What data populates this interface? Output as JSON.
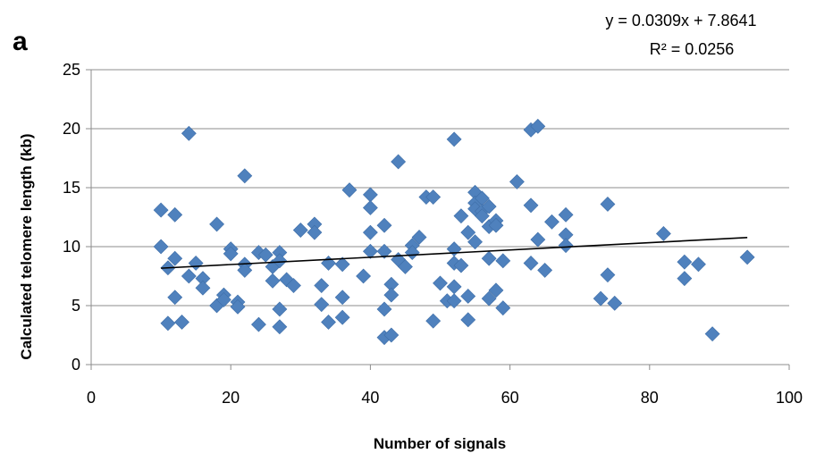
{
  "chart_data": {
    "type": "scatter",
    "panel_label": "a",
    "xlabel": "Number of signals",
    "ylabel": "Calculated telomere length (kb)",
    "xlim": [
      0,
      100
    ],
    "ylim": [
      0,
      25
    ],
    "x_ticks": [
      0,
      20,
      40,
      60,
      80,
      100
    ],
    "y_ticks": [
      0,
      5,
      10,
      15,
      20,
      25
    ],
    "grid": "horizontal",
    "marker": "diamond",
    "marker_color": "#4F81BD",
    "trendline": {
      "slope": 0.0309,
      "intercept": 7.8641,
      "x_range": [
        10,
        94
      ],
      "color": "#000000",
      "equation": "y = 0.0309x + 7.8641",
      "r_squared": "R² = 0.0256"
    },
    "points": [
      {
        "x": 10,
        "y": 13.1
      },
      {
        "x": 10,
        "y": 10.0
      },
      {
        "x": 11,
        "y": 8.2
      },
      {
        "x": 11,
        "y": 3.5
      },
      {
        "x": 12,
        "y": 12.7
      },
      {
        "x": 12,
        "y": 9.0
      },
      {
        "x": 12,
        "y": 5.7
      },
      {
        "x": 13,
        "y": 3.6
      },
      {
        "x": 14,
        "y": 19.6
      },
      {
        "x": 14,
        "y": 7.5
      },
      {
        "x": 15,
        "y": 8.6
      },
      {
        "x": 16,
        "y": 7.3
      },
      {
        "x": 16,
        "y": 6.5
      },
      {
        "x": 18,
        "y": 11.9
      },
      {
        "x": 18,
        "y": 5.0
      },
      {
        "x": 19,
        "y": 5.9
      },
      {
        "x": 19,
        "y": 5.5
      },
      {
        "x": 20,
        "y": 9.8
      },
      {
        "x": 20,
        "y": 9.4
      },
      {
        "x": 21,
        "y": 5.3
      },
      {
        "x": 21,
        "y": 4.9
      },
      {
        "x": 22,
        "y": 16.0
      },
      {
        "x": 22,
        "y": 8.5
      },
      {
        "x": 22,
        "y": 8.0
      },
      {
        "x": 24,
        "y": 9.5
      },
      {
        "x": 24,
        "y": 3.4
      },
      {
        "x": 25,
        "y": 9.3
      },
      {
        "x": 26,
        "y": 8.3
      },
      {
        "x": 26,
        "y": 7.1
      },
      {
        "x": 27,
        "y": 9.5
      },
      {
        "x": 27,
        "y": 8.8
      },
      {
        "x": 27,
        "y": 4.7
      },
      {
        "x": 27,
        "y": 3.2
      },
      {
        "x": 28,
        "y": 7.2
      },
      {
        "x": 29,
        "y": 6.7
      },
      {
        "x": 30,
        "y": 11.4
      },
      {
        "x": 32,
        "y": 11.9
      },
      {
        "x": 32,
        "y": 11.2
      },
      {
        "x": 33,
        "y": 6.7
      },
      {
        "x": 33,
        "y": 5.1
      },
      {
        "x": 34,
        "y": 8.6
      },
      {
        "x": 34,
        "y": 3.6
      },
      {
        "x": 36,
        "y": 8.5
      },
      {
        "x": 36,
        "y": 5.7
      },
      {
        "x": 36,
        "y": 4.0
      },
      {
        "x": 37,
        "y": 14.8
      },
      {
        "x": 39,
        "y": 7.5
      },
      {
        "x": 40,
        "y": 14.4
      },
      {
        "x": 40,
        "y": 13.3
      },
      {
        "x": 40,
        "y": 11.2
      },
      {
        "x": 40,
        "y": 9.6
      },
      {
        "x": 42,
        "y": 11.8
      },
      {
        "x": 42,
        "y": 9.6
      },
      {
        "x": 42,
        "y": 4.7
      },
      {
        "x": 42,
        "y": 2.3
      },
      {
        "x": 43,
        "y": 6.8
      },
      {
        "x": 43,
        "y": 5.9
      },
      {
        "x": 43,
        "y": 2.5
      },
      {
        "x": 44,
        "y": 17.2
      },
      {
        "x": 44,
        "y": 8.9
      },
      {
        "x": 45,
        "y": 8.3
      },
      {
        "x": 46,
        "y": 10.1
      },
      {
        "x": 46,
        "y": 9.5
      },
      {
        "x": 47,
        "y": 10.8
      },
      {
        "x": 48,
        "y": 14.2
      },
      {
        "x": 49,
        "y": 14.2
      },
      {
        "x": 49,
        "y": 3.7
      },
      {
        "x": 50,
        "y": 6.9
      },
      {
        "x": 51,
        "y": 5.4
      },
      {
        "x": 52,
        "y": 19.1
      },
      {
        "x": 52,
        "y": 9.8
      },
      {
        "x": 52,
        "y": 8.6
      },
      {
        "x": 52,
        "y": 6.6
      },
      {
        "x": 52,
        "y": 5.4
      },
      {
        "x": 53,
        "y": 12.6
      },
      {
        "x": 53,
        "y": 8.4
      },
      {
        "x": 54,
        "y": 11.2
      },
      {
        "x": 54,
        "y": 5.8
      },
      {
        "x": 54,
        "y": 3.8
      },
      {
        "x": 55,
        "y": 14.6
      },
      {
        "x": 55,
        "y": 13.7
      },
      {
        "x": 55,
        "y": 13.2
      },
      {
        "x": 55,
        "y": 10.4
      },
      {
        "x": 56,
        "y": 14.1
      },
      {
        "x": 56,
        "y": 13.0
      },
      {
        "x": 56,
        "y": 12.6
      },
      {
        "x": 57,
        "y": 13.4
      },
      {
        "x": 57,
        "y": 11.7
      },
      {
        "x": 57,
        "y": 9.0
      },
      {
        "x": 57,
        "y": 5.6
      },
      {
        "x": 58,
        "y": 12.2
      },
      {
        "x": 58,
        "y": 11.8
      },
      {
        "x": 58,
        "y": 6.3
      },
      {
        "x": 59,
        "y": 8.8
      },
      {
        "x": 59,
        "y": 4.8
      },
      {
        "x": 61,
        "y": 15.5
      },
      {
        "x": 63,
        "y": 19.9
      },
      {
        "x": 63,
        "y": 13.5
      },
      {
        "x": 63,
        "y": 8.6
      },
      {
        "x": 64,
        "y": 20.2
      },
      {
        "x": 64,
        "y": 10.6
      },
      {
        "x": 65,
        "y": 8.0
      },
      {
        "x": 66,
        "y": 12.1
      },
      {
        "x": 68,
        "y": 12.7
      },
      {
        "x": 68,
        "y": 11.0
      },
      {
        "x": 68,
        "y": 10.1
      },
      {
        "x": 73,
        "y": 5.6
      },
      {
        "x": 74,
        "y": 13.6
      },
      {
        "x": 74,
        "y": 7.6
      },
      {
        "x": 75,
        "y": 5.2
      },
      {
        "x": 82,
        "y": 11.1
      },
      {
        "x": 85,
        "y": 8.7
      },
      {
        "x": 85,
        "y": 7.3
      },
      {
        "x": 87,
        "y": 8.5
      },
      {
        "x": 89,
        "y": 2.6
      },
      {
        "x": 94,
        "y": 9.1
      }
    ]
  }
}
